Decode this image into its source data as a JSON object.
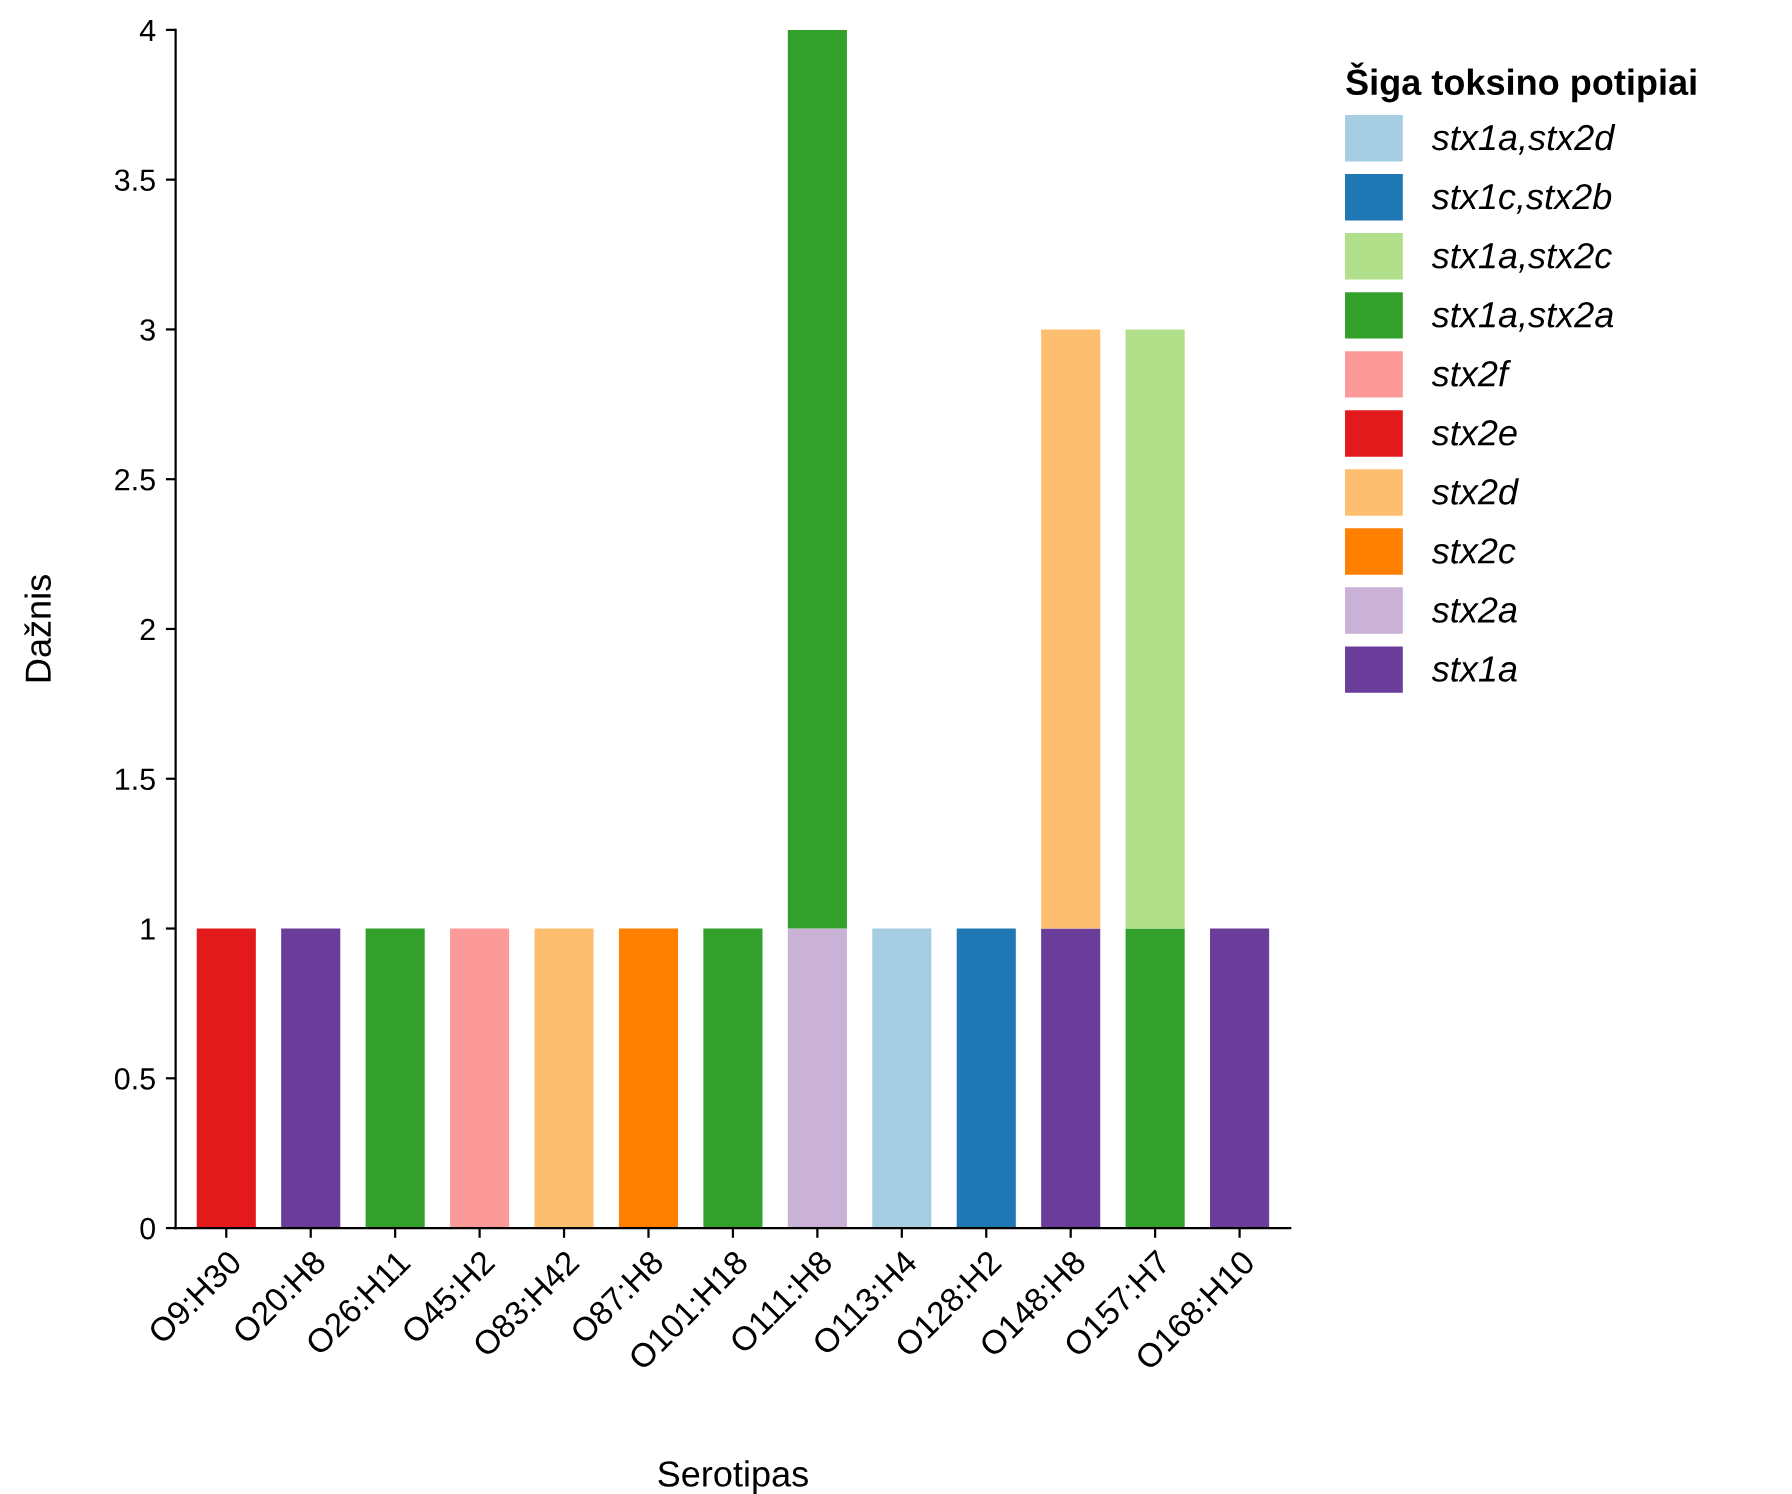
{
  "chart_data": {
    "type": "bar",
    "stacked": true,
    "xlabel": "Serotipas",
    "ylabel": "Dažnis",
    "legend_title": "Šiga toksino potipiai",
    "legend": "right",
    "grid": false,
    "categories": [
      "O9:H30",
      "O20:H8",
      "O26:H11",
      "O45:H2",
      "O83:H42",
      "O87:H8",
      "O101:H18",
      "O111:H8",
      "O113:H4",
      "O128:H2",
      "O148:H8",
      "O157:H7",
      "O168:H10"
    ],
    "ylim": [
      0,
      4
    ],
    "yticks": [
      0,
      0.5,
      1,
      1.5,
      2,
      2.5,
      3,
      3.5,
      4
    ],
    "series": [
      {
        "name": "stx1a",
        "color": "#6a3d9a",
        "values": [
          null,
          1,
          null,
          null,
          null,
          null,
          null,
          null,
          null,
          null,
          1,
          null,
          1
        ]
      },
      {
        "name": "stx2a",
        "color": "#cab2d6",
        "values": [
          null,
          null,
          null,
          null,
          null,
          null,
          null,
          1,
          null,
          null,
          null,
          null,
          null
        ]
      },
      {
        "name": "stx2c",
        "color": "#ff7f00",
        "values": [
          null,
          null,
          null,
          null,
          null,
          1,
          null,
          null,
          null,
          null,
          null,
          null,
          null
        ]
      },
      {
        "name": "stx2d",
        "color": "#fdbf6f",
        "values": [
          null,
          null,
          null,
          null,
          1,
          null,
          null,
          null,
          null,
          null,
          2,
          null,
          null
        ]
      },
      {
        "name": "stx2e",
        "color": "#e31a1c",
        "values": [
          1,
          null,
          null,
          null,
          null,
          null,
          null,
          null,
          null,
          null,
          null,
          null,
          null
        ]
      },
      {
        "name": "stx2f",
        "color": "#fb9a99",
        "values": [
          null,
          null,
          null,
          1,
          null,
          null,
          null,
          null,
          null,
          null,
          null,
          null,
          null
        ]
      },
      {
        "name": "stx1a,stx2a",
        "color": "#33a02c",
        "values": [
          null,
          null,
          1,
          null,
          null,
          null,
          1,
          3,
          null,
          null,
          null,
          1,
          null
        ]
      },
      {
        "name": "stx1a,stx2c",
        "color": "#b2df8a",
        "values": [
          null,
          null,
          null,
          null,
          null,
          null,
          null,
          null,
          null,
          null,
          null,
          2,
          null
        ]
      },
      {
        "name": "stx1c,stx2b",
        "color": "#1f78b4",
        "values": [
          null,
          null,
          null,
          null,
          null,
          null,
          null,
          null,
          null,
          1,
          null,
          null,
          null
        ]
      },
      {
        "name": "stx1a,stx2d",
        "color": "#a6cee3",
        "values": [
          null,
          null,
          null,
          null,
          null,
          null,
          null,
          null,
          1,
          null,
          null,
          null,
          null
        ]
      }
    ]
  }
}
